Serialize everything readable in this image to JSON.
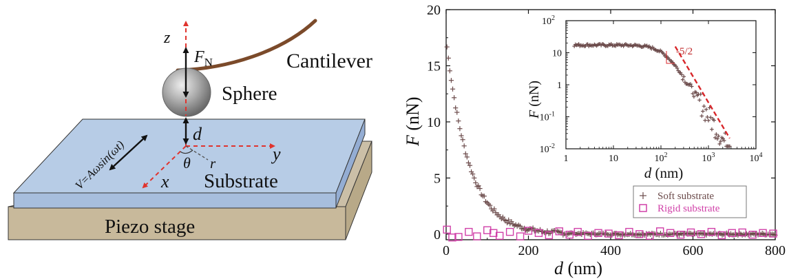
{
  "schematic": {
    "label_z": "z",
    "label_FN_main": "F",
    "label_FN_sub": "N",
    "label_cantilever": "Cantilever",
    "label_sphere": "Sphere",
    "label_d": "d",
    "label_y": "y",
    "label_x": "x",
    "label_theta": "θ",
    "label_r": "r",
    "label_velocity": "V=Aωsin(ωt)",
    "label_substrate": "Substrate",
    "label_piezo": "Piezo stage",
    "colors": {
      "cantilever": "#7b4a2a",
      "substrate_top": "#b7cce6",
      "substrate_side": "#a7bedd",
      "piezo_top": "#cbbfa7",
      "piezo_front": "#c8b99b",
      "dashed_axes": "#e0332d",
      "sphere": "#9a9a9a"
    }
  },
  "chart_data": [
    {
      "type": "scatter",
      "xlabel_var": "d",
      "xlabel_unit": "(nm)",
      "ylabel_var": "F",
      "ylabel_unit": "(nN)",
      "xlim": [
        0,
        800
      ],
      "ylim": [
        -0.5,
        20
      ],
      "x_ticks": [
        "0",
        "200",
        "400",
        "600",
        "800"
      ],
      "y_ticks": [
        "0",
        "5",
        "10",
        "15",
        "20"
      ],
      "legend_placement": "bottom-right",
      "series": [
        {
          "name": "Soft substrate",
          "marker": "plus",
          "color": "#6b4a4a",
          "model": {
            "F0": 17.3,
            "decay_nm": 55
          },
          "x_range": [
            2,
            800
          ],
          "num_points": 230,
          "noise": 0.12
        },
        {
          "name": "Rigid substrate",
          "marker": "open-square",
          "color": "#d040a8",
          "x": [
            2,
            15,
            30,
            55,
            75,
            100,
            115,
            130,
            155,
            180,
            200,
            225,
            250,
            275,
            300,
            320,
            345,
            370,
            395,
            420,
            445,
            470,
            495,
            520,
            545,
            570,
            595,
            620,
            645,
            670,
            695,
            720,
            745,
            770,
            795
          ],
          "y": [
            0.4,
            -0.3,
            -0.25,
            0.2,
            -0.2,
            0.35,
            0.1,
            -0.15,
            0.2,
            -0.2,
            0.3,
            0.1,
            -0.1,
            0.25,
            -0.05,
            0.2,
            -0.15,
            0.1,
            0.05,
            -0.1,
            0.2,
            0.0,
            -0.15,
            0.25,
            0.1,
            -0.05,
            0.15,
            0.0,
            0.2,
            -0.1,
            0.1,
            0.15,
            -0.05,
            0.1,
            0.05
          ]
        }
      ]
    },
    {
      "type": "scatter",
      "scale": "log-log",
      "xlabel_var": "d",
      "xlabel_unit": "(nm)",
      "ylabel_var": "F",
      "ylabel_unit": "(nN)",
      "xlim_log10": [
        0,
        4
      ],
      "ylim_log10": [
        -2,
        2
      ],
      "x_ticks": [
        {
          "base": "1",
          "exp": ""
        },
        {
          "base": "10",
          "exp": ""
        },
        {
          "base": "10",
          "exp": "2"
        },
        {
          "base": "10",
          "exp": "3"
        },
        {
          "base": "10",
          "exp": "4"
        }
      ],
      "y_ticks": [
        {
          "base": "10",
          "exp": "-2"
        },
        {
          "base": "10",
          "exp": "-1"
        },
        {
          "base": "1",
          "exp": ""
        },
        {
          "base": "10",
          "exp": ""
        },
        {
          "base": "10",
          "exp": "2"
        }
      ],
      "annotation": "-5/2",
      "fit_line": {
        "slope": -2.5,
        "x_range": [
          200,
          2800
        ],
        "anchor_x": 600,
        "anchor_y": 1.0,
        "color": "#d8262a"
      },
      "series": [
        {
          "name": "Soft substrate",
          "marker": "plus",
          "color": "#6b4a4a",
          "x_range": [
            1.5,
            2800
          ],
          "num_points": 140
        }
      ]
    }
  ]
}
